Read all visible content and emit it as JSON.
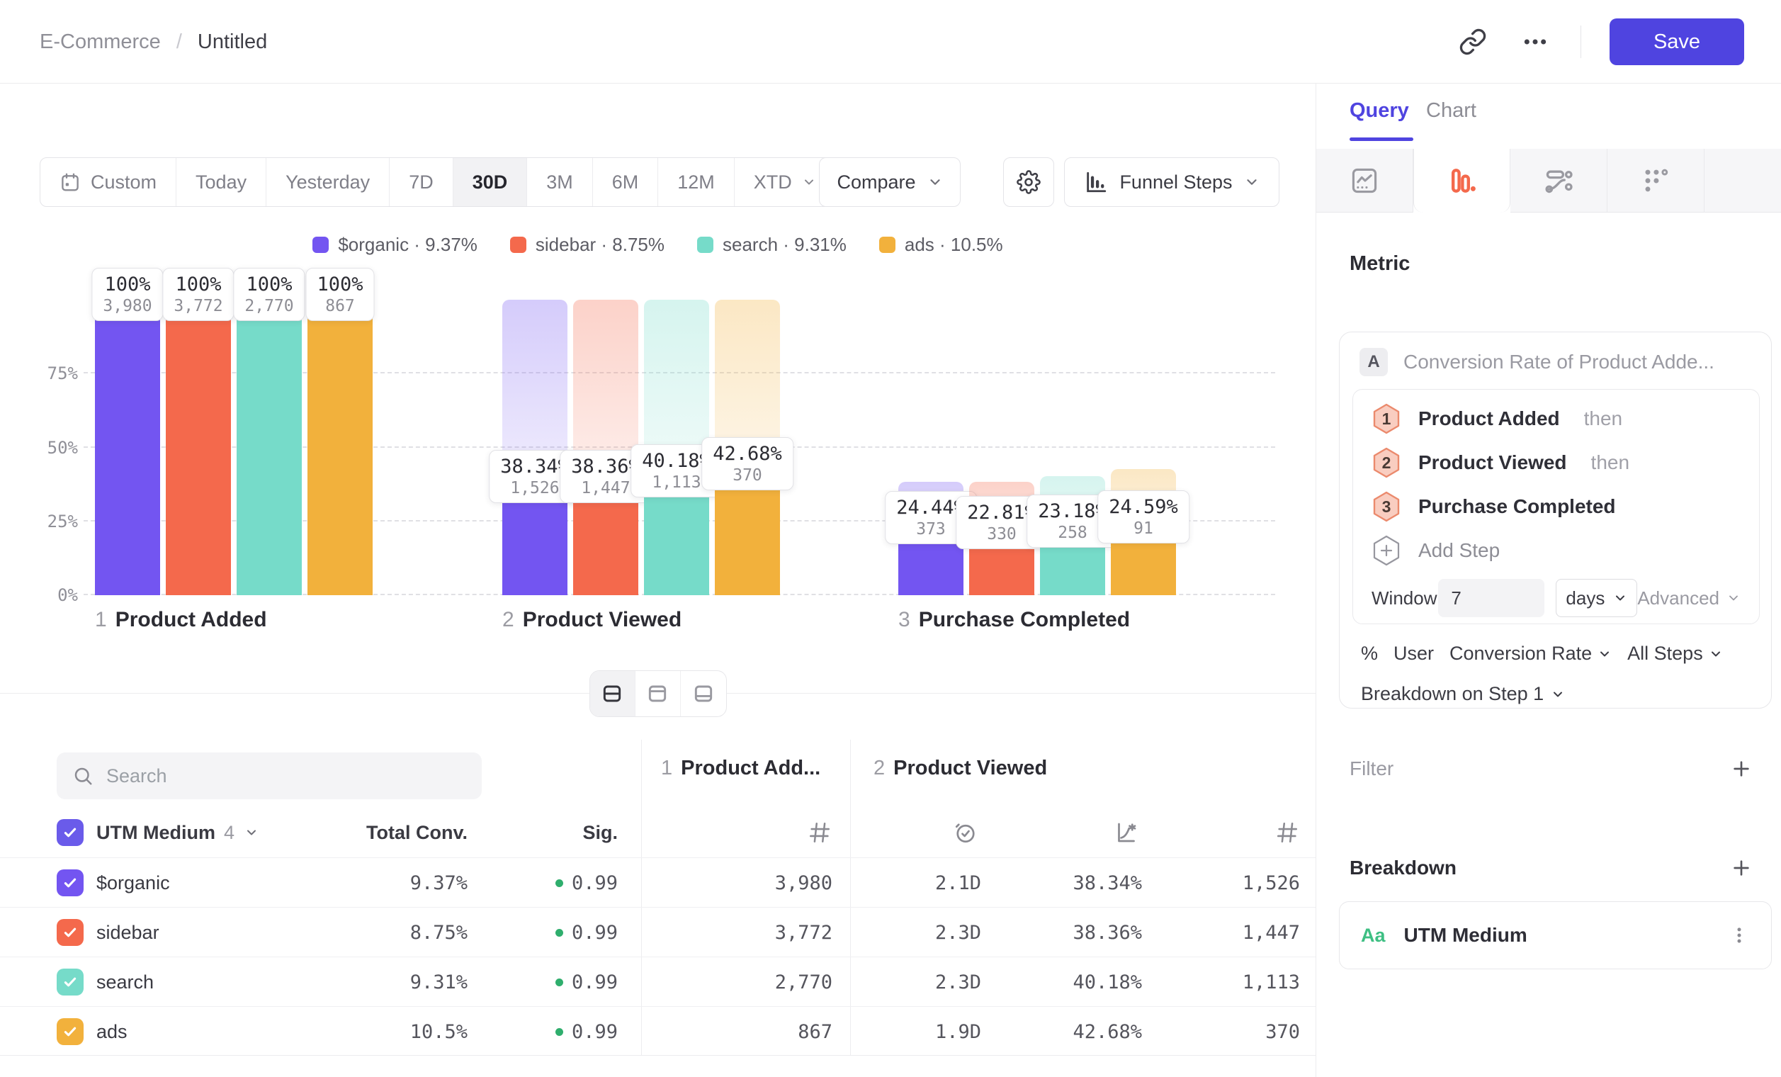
{
  "app": {
    "breadcrumb_parent": "E-Commerce",
    "breadcrumb_separator": "/",
    "title": "Untitled",
    "save_label": "Save"
  },
  "toolbar": {
    "ranges": [
      "Custom",
      "Today",
      "Yesterday",
      "7D",
      "30D",
      "3M",
      "6M",
      "12M",
      "XTD"
    ],
    "selected_range": "30D",
    "compare_label": "Compare",
    "view_label": "Funnel Steps"
  },
  "chart_data": {
    "type": "funnel_bar",
    "steps": [
      {
        "index": "1",
        "name": "Product Added"
      },
      {
        "index": "2",
        "name": "Product Viewed"
      },
      {
        "index": "3",
        "name": "Purchase Completed"
      }
    ],
    "yticks": [
      "0%",
      "25%",
      "50%",
      "75%"
    ],
    "ylim": [
      0,
      100
    ],
    "legend_separator": "·",
    "series": [
      {
        "name": "$organic",
        "color": "#7355F1",
        "overall_conversion": "9.37%",
        "values": [
          {
            "pct": 100,
            "pct_label": "100%",
            "count": 3980,
            "count_label": "3,980"
          },
          {
            "pct": 38.34,
            "pct_label": "38.34%",
            "count": 1526,
            "count_label": "1,526"
          },
          {
            "pct": 24.44,
            "pct_label": "24.44%",
            "count": 373,
            "count_label": "373"
          }
        ]
      },
      {
        "name": "sidebar",
        "color": "#F4694C",
        "overall_conversion": "8.75%",
        "values": [
          {
            "pct": 100,
            "pct_label": "100%",
            "count": 3772,
            "count_label": "3,772"
          },
          {
            "pct": 38.36,
            "pct_label": "38.36%",
            "count": 1447,
            "count_label": "1,447"
          },
          {
            "pct": 22.81,
            "pct_label": "22.81%",
            "count": 330,
            "count_label": "330"
          }
        ]
      },
      {
        "name": "search",
        "color": "#76DBC9",
        "overall_conversion": "9.31%",
        "values": [
          {
            "pct": 100,
            "pct_label": "100%",
            "count": 2770,
            "count_label": "2,770"
          },
          {
            "pct": 40.18,
            "pct_label": "40.18%",
            "count": 1113,
            "count_label": "1,113"
          },
          {
            "pct": 23.18,
            "pct_label": "23.18%",
            "count": 258,
            "count_label": "258"
          }
        ]
      },
      {
        "name": "ads",
        "color": "#F2B13C",
        "overall_conversion": "10.5%",
        "values": [
          {
            "pct": 100,
            "pct_label": "100%",
            "count": 867,
            "count_label": "867"
          },
          {
            "pct": 42.68,
            "pct_label": "42.68%",
            "count": 370,
            "count_label": "370"
          },
          {
            "pct": 24.59,
            "pct_label": "24.59%",
            "count": 91,
            "count_label": "91"
          }
        ]
      }
    ]
  },
  "table": {
    "search_placeholder": "Search",
    "group_header": {
      "label": "UTM Medium",
      "count": "4"
    },
    "columns": {
      "total": "Total Conv.",
      "sig": "Sig."
    },
    "step_columns": [
      {
        "index": "1",
        "label": "Product Add..."
      },
      {
        "index": "2",
        "label": "Product Viewed"
      }
    ],
    "rows": [
      {
        "name": "$organic",
        "color": "#7355F1",
        "total_conv": "9.37%",
        "sig": "0.99",
        "cells": [
          "3,980",
          "2.1D",
          "38.34%",
          "1,526"
        ]
      },
      {
        "name": "sidebar",
        "color": "#F4694C",
        "total_conv": "8.75%",
        "sig": "0.99",
        "cells": [
          "3,772",
          "2.3D",
          "38.36%",
          "1,447"
        ]
      },
      {
        "name": "search",
        "color": "#76DBC9",
        "total_conv": "9.31%",
        "sig": "0.99",
        "cells": [
          "2,770",
          "2.3D",
          "40.18%",
          "1,113"
        ]
      },
      {
        "name": "ads",
        "color": "#F2B13C",
        "total_conv": "10.5%",
        "sig": "0.99",
        "cells": [
          "867",
          "1.9D",
          "42.68%",
          "370"
        ]
      }
    ]
  },
  "sidebar": {
    "tabs": [
      {
        "label": "Query"
      },
      {
        "label": "Chart"
      }
    ],
    "active_tab": "Query",
    "metric_heading": "Metric",
    "metric": {
      "letter": "A",
      "label": "Conversion Rate of Product Adde..."
    },
    "steps": [
      {
        "num": "1",
        "name": "Product Added",
        "suffix": "then"
      },
      {
        "num": "2",
        "name": "Product Viewed",
        "suffix": "then"
      },
      {
        "num": "3",
        "name": "Purchase Completed",
        "suffix": ""
      }
    ],
    "add_step_label": "Add Step",
    "window": {
      "label": "Window",
      "value": "7",
      "unit": "days",
      "advanced_label": "Advanced"
    },
    "measurement": {
      "symbol": "%",
      "entity": "User",
      "metric": "Conversion Rate",
      "scope": "All Steps"
    },
    "breakdown_on_label": "Breakdown on Step 1",
    "filter": {
      "label": "Filter"
    },
    "breakdown": {
      "label": "Breakdown",
      "items": [
        {
          "type_label": "Aa",
          "name": "UTM Medium"
        }
      ]
    }
  },
  "colors": {
    "accent": "#4F44E0",
    "sig_green": "#2FAE6D",
    "type_label_green": "#3EBF83",
    "funnel_tab_icon": "#F4694C"
  }
}
